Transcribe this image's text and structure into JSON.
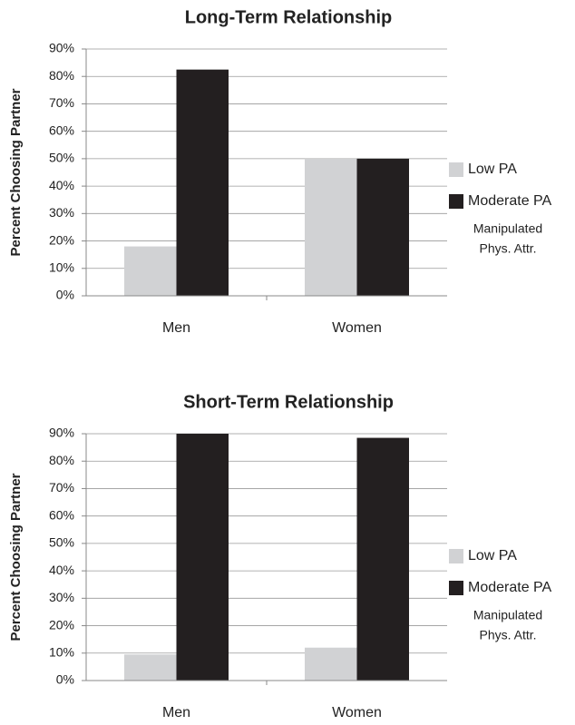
{
  "chart_data": [
    {
      "type": "bar",
      "title": "Long-Term Relationship",
      "y_label": "Percent Choosing Partner",
      "categories": [
        "Men",
        "Women"
      ],
      "series": [
        {
          "name": "Low PA",
          "color": "#d1d2d4",
          "values": [
            18,
            50
          ]
        },
        {
          "name": "Moderate PA",
          "color": "#231f20",
          "values": [
            82.5,
            50
          ]
        }
      ],
      "legend_title": [
        "Manipulated",
        "Phys. Attr."
      ],
      "legend": "right",
      "ylim": [
        0,
        90
      ],
      "yticks": [
        {
          "value": 0,
          "label": "0%"
        },
        {
          "value": 10,
          "label": "10%"
        },
        {
          "value": 20,
          "label": "20%"
        },
        {
          "value": 30,
          "label": "30%"
        },
        {
          "value": 40,
          "label": "40%"
        },
        {
          "value": 50,
          "label": "50%"
        },
        {
          "value": 60,
          "label": "60%"
        },
        {
          "value": 70,
          "label": "70%"
        },
        {
          "value": 80,
          "label": "80%"
        },
        {
          "value": 90,
          "label": "90%"
        }
      ],
      "grid": true
    },
    {
      "type": "bar",
      "title": "Short-Term Relationship",
      "y_label": "Percent Choosing Partner",
      "categories": [
        "Men",
        "Women"
      ],
      "series": [
        {
          "name": "Low PA",
          "color": "#d1d2d4",
          "values": [
            9.5,
            12
          ]
        },
        {
          "name": "Moderate PA",
          "color": "#231f20",
          "values": [
            90,
            88.5
          ]
        }
      ],
      "legend_title": [
        "Manipulated",
        "Phys. Attr."
      ],
      "legend": "right",
      "ylim": [
        0,
        90
      ],
      "yticks": [
        {
          "value": 0,
          "label": "0%"
        },
        {
          "value": 10,
          "label": "10%"
        },
        {
          "value": 20,
          "label": "20%"
        },
        {
          "value": 30,
          "label": "30%"
        },
        {
          "value": 40,
          "label": "40%"
        },
        {
          "value": 50,
          "label": "50%"
        },
        {
          "value": 60,
          "label": "60%"
        },
        {
          "value": 70,
          "label": "70%"
        },
        {
          "value": 80,
          "label": "80%"
        },
        {
          "value": 90,
          "label": "90%"
        }
      ],
      "grid": true
    }
  ]
}
